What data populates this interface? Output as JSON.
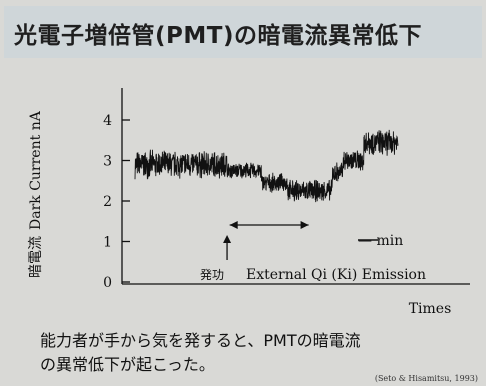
{
  "title": "光電子増倍管(PMT)の暗電流異常低下",
  "caption": {
    "line1": "能力者が手から気を発すると、PMTの暗電流",
    "line2": "の異常低下が起こった。"
  },
  "citation": "(Seto & Hisamitsu, 1993)",
  "colors": {
    "trace": "#111111",
    "title_bg": "#cfd6d9",
    "slide_bg": "#d9d9d6"
  },
  "chart_data": {
    "type": "line",
    "ylabel": "Dark Current  nA",
    "ylabel_jp": "暗電流",
    "xlabel": "Times",
    "y_ticks": [
      0,
      1,
      2,
      3,
      4
    ],
    "ylim": [
      0,
      4.5
    ],
    "scale_bar_label": "— min",
    "annotations": {
      "arrow_label_jp": "発功",
      "emission_label": "External Qi (Ki) Emission"
    },
    "series": [
      {
        "segments": [
          {
            "x_start": 0,
            "x_end": 35,
            "mean": 2.9,
            "noise": 0.38
          },
          {
            "x_start": 35,
            "x_end": 48,
            "mean": 2.75,
            "noise": 0.22
          },
          {
            "x_start": 48,
            "x_end": 58,
            "mean": 2.45,
            "noise": 0.25
          },
          {
            "x_start": 58,
            "x_end": 75,
            "mean": 2.25,
            "noise": 0.3
          },
          {
            "x_start": 75,
            "x_end": 79,
            "mean": 2.7,
            "noise": 0.3
          },
          {
            "x_start": 79,
            "x_end": 87,
            "mean": 3.0,
            "noise": 0.3
          },
          {
            "x_start": 87,
            "x_end": 100,
            "mean": 3.45,
            "noise": 0.35
          }
        ]
      }
    ],
    "xlim": [
      0,
      100
    ]
  }
}
